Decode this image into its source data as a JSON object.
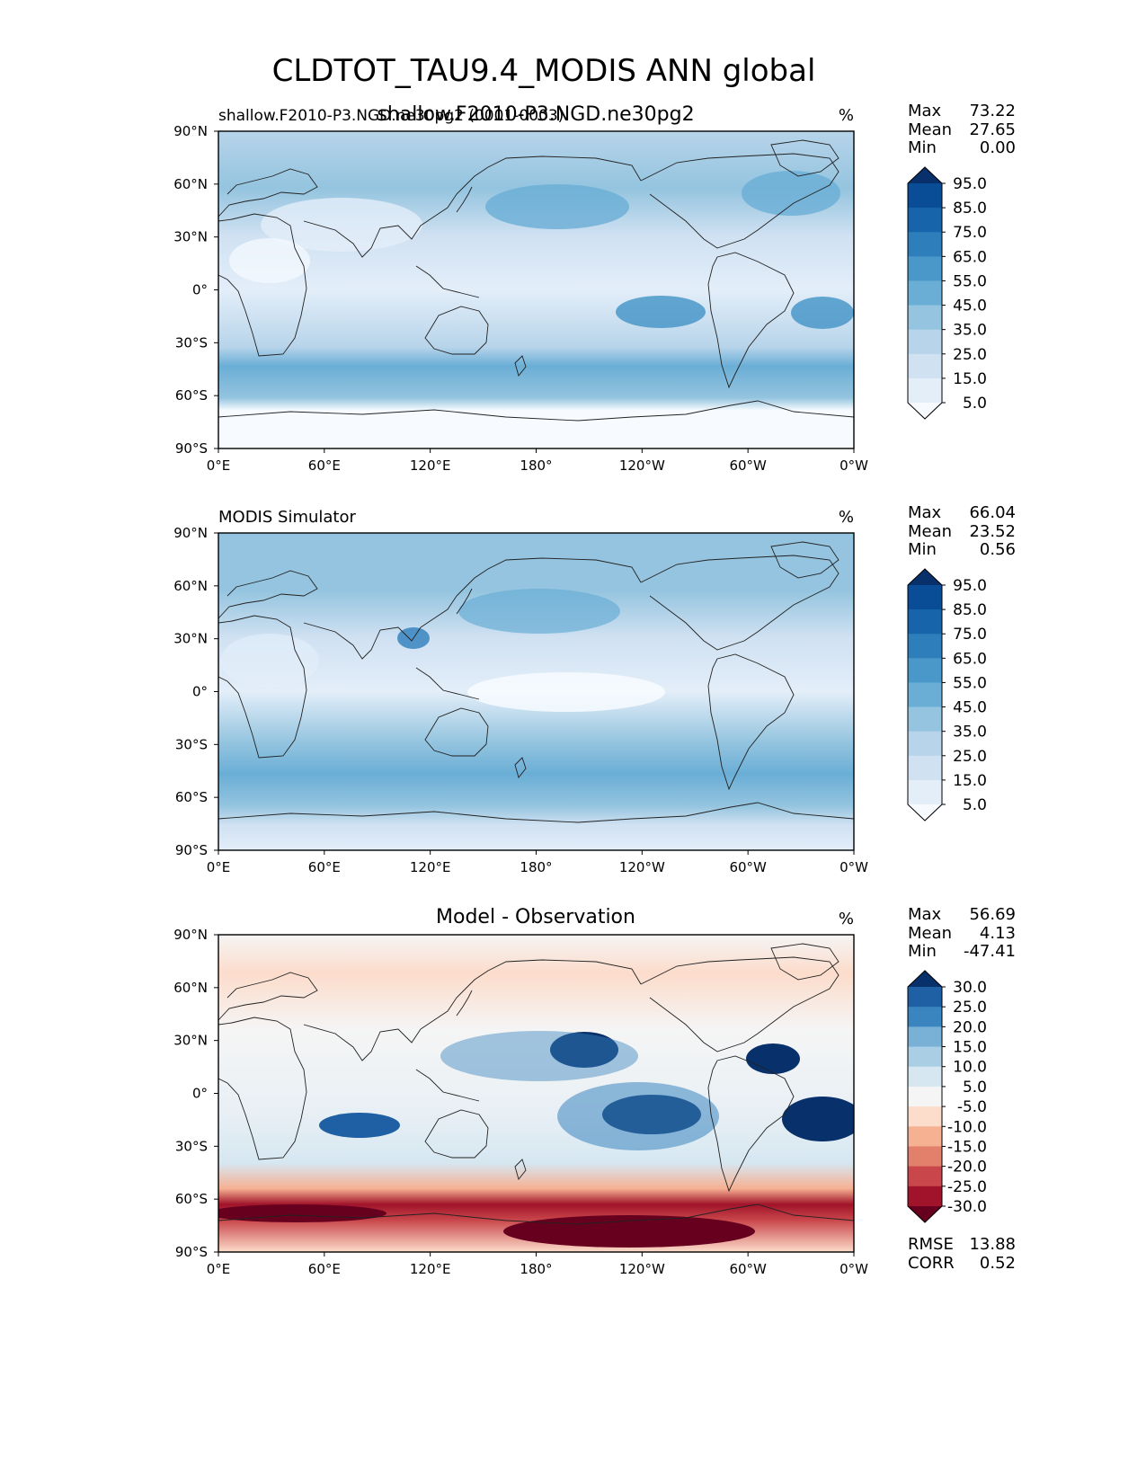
{
  "figure": {
    "title": "CLDTOT_TAU9.4_MODIS ANN global",
    "overlap_title": "shallow.F2010-P3.NGD.ne30pg2"
  },
  "x_ticks": [
    "0°E",
    "60°E",
    "120°E",
    "180°",
    "120°W",
    "60°W",
    "0°W"
  ],
  "y_ticks": [
    "90°N",
    "60°N",
    "30°N",
    "0°",
    "30°S",
    "60°S",
    "90°S"
  ],
  "stat_labels": {
    "max": "Max",
    "mean": "Mean",
    "min": "Min",
    "rmse": "RMSE",
    "corr": "CORR"
  },
  "chart_data": [
    {
      "type": "heatmap",
      "panel": "test",
      "left_title": "shallow.F2010-P3.NGD.ne30pg2 (0001-0003)",
      "center_title": "",
      "units": "%",
      "stats": {
        "max": "73.22",
        "mean": "27.65",
        "min": "0.00"
      },
      "xlim": [
        0,
        360
      ],
      "ylim": [
        -90,
        90
      ],
      "levels": [
        "95.0",
        "85.0",
        "75.0",
        "65.0",
        "55.0",
        "45.0",
        "35.0",
        "25.0",
        "15.0",
        "5.0"
      ],
      "colors": [
        "#08306b",
        "#084d96",
        "#1764ab",
        "#2e7ebc",
        "#4a98c9",
        "#6aaed6",
        "#94c4df",
        "#b7d4ea",
        "#d0e1f2",
        "#e3eef9",
        "#f7fbff"
      ]
    },
    {
      "type": "heatmap",
      "panel": "reference",
      "left_title": "MODIS Simulator",
      "center_title": "",
      "units": "%",
      "stats": {
        "max": "66.04",
        "mean": "23.52",
        "min": "0.56"
      },
      "xlim": [
        0,
        360
      ],
      "ylim": [
        -90,
        90
      ],
      "levels": [
        "95.0",
        "85.0",
        "75.0",
        "65.0",
        "55.0",
        "45.0",
        "35.0",
        "25.0",
        "15.0",
        "5.0"
      ],
      "colors": [
        "#08306b",
        "#084d96",
        "#1764ab",
        "#2e7ebc",
        "#4a98c9",
        "#6aaed6",
        "#94c4df",
        "#b7d4ea",
        "#d0e1f2",
        "#e3eef9",
        "#f7fbff"
      ]
    },
    {
      "type": "heatmap",
      "panel": "difference",
      "left_title": "",
      "center_title": "Model - Observation",
      "units": "%",
      "stats": {
        "max": "56.69",
        "mean": "4.13",
        "min": "-47.41"
      },
      "extra_stats": {
        "rmse": "13.88",
        "corr": "0.52"
      },
      "xlim": [
        0,
        360
      ],
      "ylim": [
        -90,
        90
      ],
      "levels": [
        "30.0",
        "25.0",
        "20.0",
        "15.0",
        "10.0",
        "5.0",
        "-5.0",
        "-10.0",
        "-15.0",
        "-20.0",
        "-25.0",
        "-30.0"
      ],
      "colors": [
        "#08306b",
        "#1f5fa3",
        "#3a85c0",
        "#79b1d6",
        "#aacfe5",
        "#d6e7f1",
        "#f5f5f5",
        "#fcdccb",
        "#f6b092",
        "#e2806b",
        "#c9474b",
        "#a1132a",
        "#67001f"
      ]
    }
  ]
}
